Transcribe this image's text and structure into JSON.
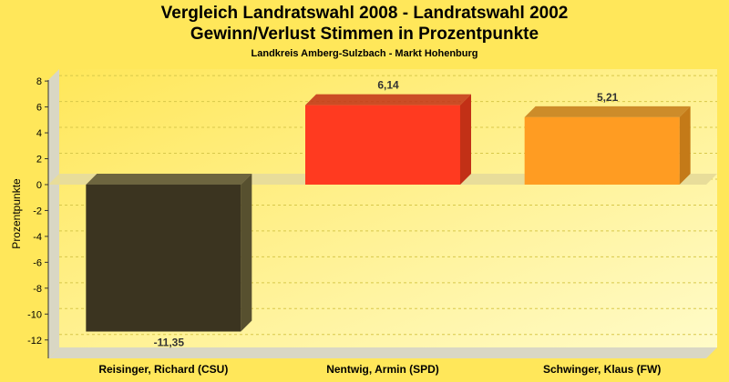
{
  "chart_data": {
    "type": "bar",
    "title": "Vergleich Landratswahl 2008 - Landratswahl 2002",
    "subtitle": "Gewinn/Verlust Stimmen in Prozentpunkte",
    "caption": "Landkreis Amberg-Sulzbach - Markt Hohenburg",
    "ylabel": "Prozentpunkte",
    "xlabel": "",
    "ylim": [
      -13,
      8.5
    ],
    "yticks": [
      8,
      6,
      4,
      2,
      0,
      -2,
      -4,
      -6,
      -8,
      -10,
      -12
    ],
    "grid": true,
    "categories": [
      "Reisinger, Richard (CSU)",
      "Nentwig, Armin (SPD)",
      "Schwinger, Klaus (FW)"
    ],
    "values": [
      -11.35,
      6.14,
      5.21
    ],
    "value_labels": [
      "-11,35",
      "6,14",
      "5,21"
    ],
    "colors": [
      "#3b3420",
      "#ff3a20",
      "#ff9c22"
    ],
    "side_colors": [
      "#57502f",
      "#c23016",
      "#c47a18"
    ]
  }
}
